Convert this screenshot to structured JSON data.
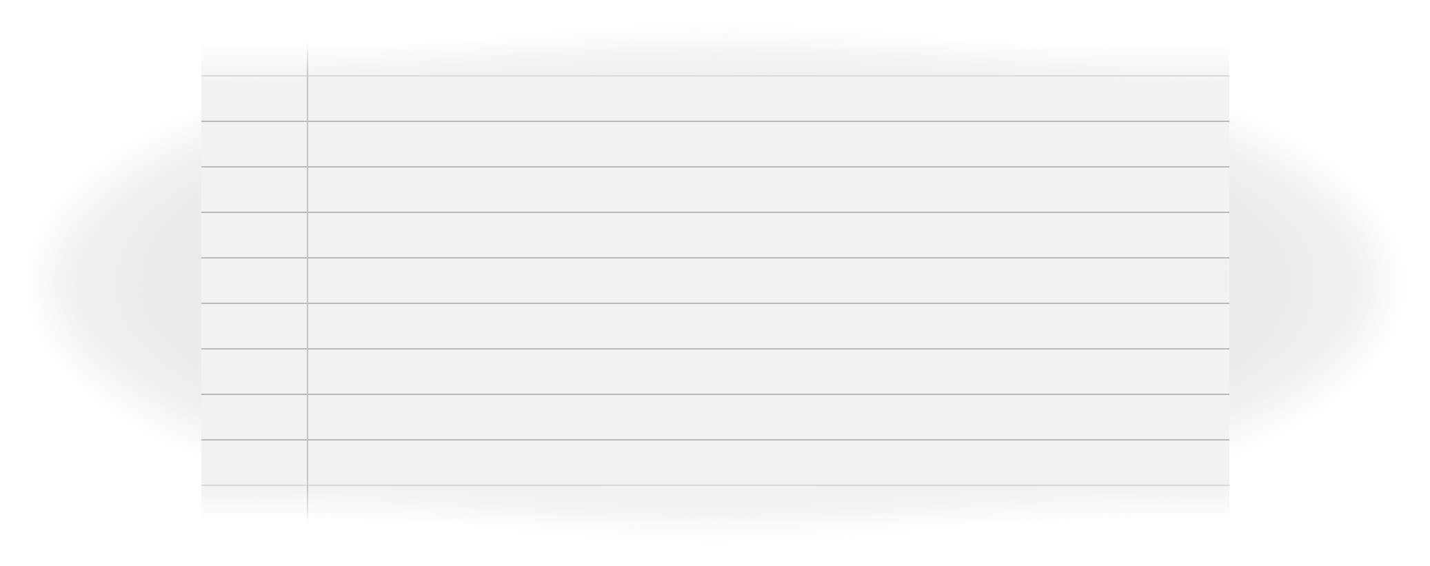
{
  "sheet": {
    "background_color": "#f2f2f2",
    "rule_color": "#b8b8b8",
    "margin_line_color": "#c4c4c4",
    "rule_count": 10
  }
}
